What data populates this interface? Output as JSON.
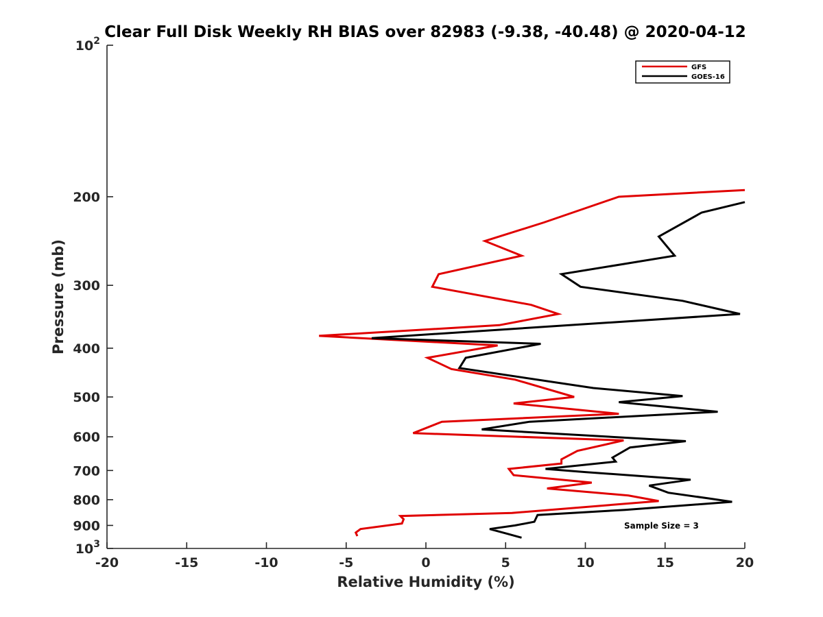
{
  "chart_data": {
    "type": "line",
    "title": "Clear Full Disk Weekly RH BIAS over 82983 (-9.38, -40.48) @ 2020-04-12",
    "xlabel": "Relative Humidity (%)",
    "ylabel": "Pressure (mb)",
    "xlim": [
      -20,
      20
    ],
    "ylim": [
      100,
      1000
    ],
    "yscale": "log",
    "y_reversed": true,
    "x_ticks": [
      -20,
      -15,
      -10,
      -5,
      0,
      5,
      10,
      15,
      20
    ],
    "x_tick_labels": [
      "-20",
      "-15",
      "-10",
      "-5",
      "0",
      "5",
      "10",
      "15",
      "20"
    ],
    "y_ticks": [
      100,
      200,
      300,
      400,
      500,
      600,
      700,
      800,
      900,
      1000
    ],
    "y_tick_labels": [
      {
        "base": "10",
        "exp": "2"
      },
      {
        "base": "200",
        "exp": ""
      },
      {
        "base": "300",
        "exp": ""
      },
      {
        "base": "400",
        "exp": ""
      },
      {
        "base": "500",
        "exp": ""
      },
      {
        "base": "600",
        "exp": ""
      },
      {
        "base": "700",
        "exp": ""
      },
      {
        "base": "800",
        "exp": ""
      },
      {
        "base": "900",
        "exp": ""
      },
      {
        "base": "10",
        "exp": "3"
      }
    ],
    "legend_position": "top-right",
    "annotation": "Sample Size = 3",
    "series": [
      {
        "name": "GFS",
        "color": "#e00000",
        "points": [
          [
            20,
            194
          ],
          [
            12.1,
            200
          ],
          [
            7.4,
            225
          ],
          [
            3.7,
            245
          ],
          [
            6,
            262
          ],
          [
            0.8,
            285
          ],
          [
            0.4,
            302
          ],
          [
            6.6,
            328
          ],
          [
            8.3,
            342
          ],
          [
            4.6,
            360
          ],
          [
            -6.7,
            378
          ],
          [
            4.5,
            395
          ],
          [
            0.1,
            418
          ],
          [
            1.6,
            440
          ],
          [
            5.6,
            462
          ],
          [
            9.3,
            500
          ],
          [
            5.5,
            515
          ],
          [
            12.1,
            540
          ],
          [
            1,
            560
          ],
          [
            -0.8,
            590
          ],
          [
            12.4,
            610
          ],
          [
            9.5,
            640
          ],
          [
            8.5,
            665
          ],
          [
            8.5,
            678
          ],
          [
            5.2,
            695
          ],
          [
            5.5,
            715
          ],
          [
            10.4,
            740
          ],
          [
            7.6,
            760
          ],
          [
            12.7,
            785
          ],
          [
            14.6,
            805
          ],
          [
            5.4,
            850
          ],
          [
            -1.6,
            862
          ],
          [
            -1.4,
            875
          ],
          [
            -1.5,
            892
          ],
          [
            -4.1,
            915
          ],
          [
            -4.4,
            930
          ],
          [
            -4.3,
            945
          ]
        ]
      },
      {
        "name": "GOES-16",
        "color": "#000000",
        "points": [
          [
            20,
            205
          ],
          [
            17.3,
            215
          ],
          [
            14.6,
            240
          ],
          [
            15.6,
            262
          ],
          [
            8.5,
            285
          ],
          [
            9.7,
            302
          ],
          [
            16.1,
            322
          ],
          [
            19.7,
            342
          ],
          [
            -3.4,
            382
          ],
          [
            7.2,
            392
          ],
          [
            2.5,
            418
          ],
          [
            2.1,
            438
          ],
          [
            10.5,
            480
          ],
          [
            16.1,
            498
          ],
          [
            12.1,
            512
          ],
          [
            18.3,
            535
          ],
          [
            6.5,
            560
          ],
          [
            3.5,
            580
          ],
          [
            16.3,
            612
          ],
          [
            12.8,
            630
          ],
          [
            11.7,
            660
          ],
          [
            11.9,
            672
          ],
          [
            7.5,
            695
          ],
          [
            10,
            705
          ],
          [
            16.6,
            730
          ],
          [
            14,
            750
          ],
          [
            15.2,
            775
          ],
          [
            17.7,
            795
          ],
          [
            19.2,
            808
          ],
          [
            12.5,
            838
          ],
          [
            7,
            858
          ],
          [
            6.8,
            885
          ],
          [
            5.6,
            900
          ],
          [
            4,
            915
          ],
          [
            5.1,
            935
          ],
          [
            6,
            952
          ]
        ]
      }
    ]
  }
}
